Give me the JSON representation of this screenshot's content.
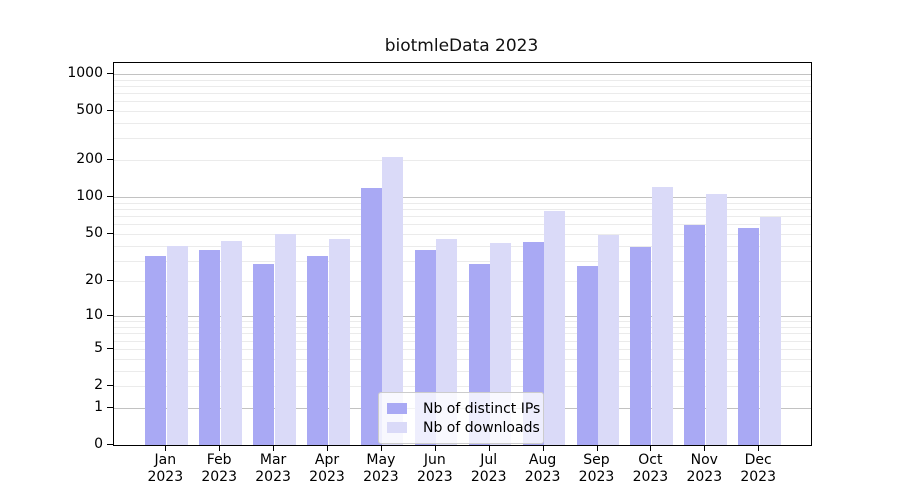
{
  "chart_data": {
    "type": "bar",
    "title": "biotmleData 2023",
    "months": [
      "Jan",
      "Feb",
      "Mar",
      "Apr",
      "May",
      "Jun",
      "Jul",
      "Aug",
      "Sep",
      "Oct",
      "Nov",
      "Dec"
    ],
    "year": "2023",
    "categories": [
      "Jan 2023",
      "Feb 2023",
      "Mar 2023",
      "Apr 2023",
      "May 2023",
      "Jun 2023",
      "Jul 2023",
      "Aug 2023",
      "Sep 2023",
      "Oct 2023",
      "Nov 2023",
      "Dec 2023"
    ],
    "series": [
      {
        "name": "Nb of distinct IPs",
        "color": "#a9a9f4",
        "values": [
          33,
          37,
          28,
          33,
          118,
          37,
          28,
          43,
          27,
          39,
          59,
          56
        ]
      },
      {
        "name": "Nb of downloads",
        "color": "#dadaf8",
        "values": [
          40,
          44,
          50,
          45,
          211,
          45,
          42,
          77,
          49,
          120,
          107,
          69
        ]
      }
    ],
    "xlabel": "",
    "ylabel": "",
    "y_scale": "log1p",
    "y_ticks": [
      0,
      1,
      2,
      5,
      10,
      20,
      50,
      100,
      200,
      500,
      1000
    ],
    "ylim": [
      0,
      1224
    ],
    "grid": "horizontal major+minor",
    "legend_position": "inside bottom center"
  }
}
